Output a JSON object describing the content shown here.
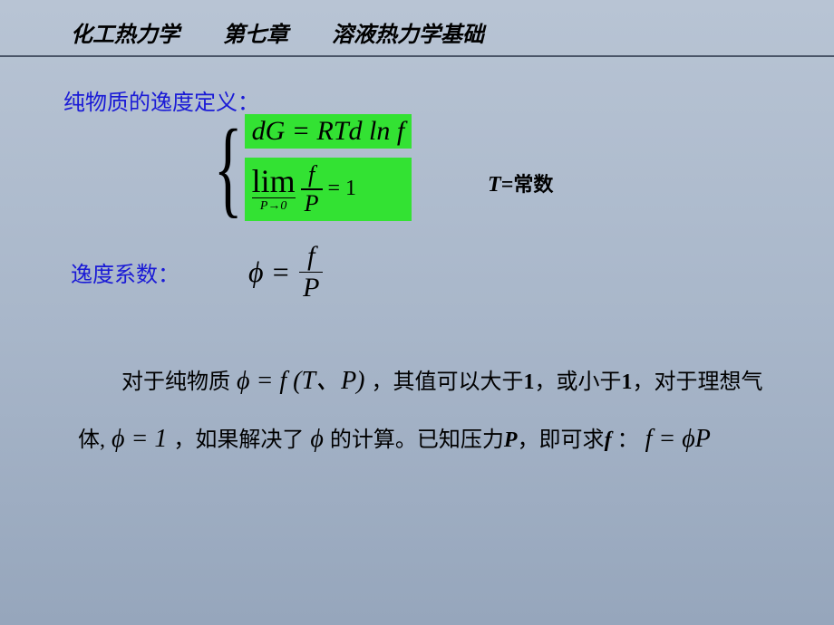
{
  "header": {
    "course": "化工热力学",
    "chapter": "第七章",
    "topic": "溶液热力学基础"
  },
  "section1_title": "纯物质的逸度定义：",
  "eq1": "dG = RTd ln f",
  "lim_word": "lim",
  "lim_sub": "P→0",
  "lim_frac_num": "f",
  "lim_frac_den": "P",
  "lim_rhs": "= 1",
  "tconst_T": "T=",
  "tconst_label": "常数",
  "section2_title": "逸度系数：",
  "phi_lhs": "ϕ =",
  "phi_frac_num": "f",
  "phi_frac_den": "P",
  "para_t1": "对于纯物质",
  "para_m1": " ϕ = f (T、P) ",
  "para_t2": "，其值可以大于",
  "para_n1": "1",
  "para_t3": "，或小于",
  "para_n2": "1",
  "para_t4": "，对于理想气体,",
  "para_m2": " ϕ = 1 ",
  "para_t5": "，如果解决了",
  "para_m3": " ϕ ",
  "para_t6": "的计算。已知压力",
  "para_m4": "P",
  "para_t7": "，即可求",
  "para_m5": "f ",
  "para_t8": "：",
  "para_m6": " f = ϕP",
  "colors": {
    "title_blue": "#1a1ad6",
    "highlight_green": "#33e233",
    "bg_top": "#b8c4d4",
    "bg_bottom": "#96a6bc"
  }
}
